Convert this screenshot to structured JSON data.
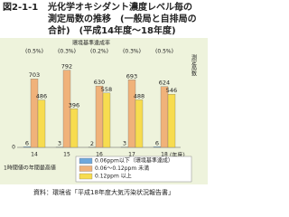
{
  "chart_data": {
    "type": "bar",
    "figure_label": "図2-1-1",
    "title_lines": [
      "光化学オキシダント濃度レベル毎の",
      "測定局数の推移　(一般局と自排局の",
      "合計)　(平成14年度～18年度)"
    ],
    "categories": [
      "14",
      "15",
      "16",
      "17",
      "18"
    ],
    "x_unit": "(年度)",
    "y_label": "測定局数",
    "bottom_note": "1時間値の年間最高値",
    "achievement_rates": {
      "label": "環境基準達成率",
      "values": [
        0.5,
        0.3,
        0.2,
        0.3,
        0.5
      ],
      "value_labels": [
        "(0.5%)",
        "(0.3%)",
        "(0.2%)",
        "(0.3%)",
        "(0.5%)"
      ]
    },
    "series": [
      {
        "name": "0.06ppm以下（環境基準達成）",
        "color": "#6fa8dc",
        "values": [
          6,
          3,
          2,
          3,
          6
        ]
      },
      {
        "name": "0.06～0.12ppm 未満",
        "color": "#f0b27a",
        "values": [
          703,
          792,
          630,
          693,
          624
        ]
      },
      {
        "name": "0.12ppm 以上",
        "color": "#f7dc4f",
        "values": [
          486,
          396,
          558,
          488,
          546
        ]
      }
    ],
    "ylim": [
      0,
      900
    ],
    "yticks": [
      0
    ],
    "source": "資料：環境省「平成18年度大気汚染状況報告書」"
  }
}
